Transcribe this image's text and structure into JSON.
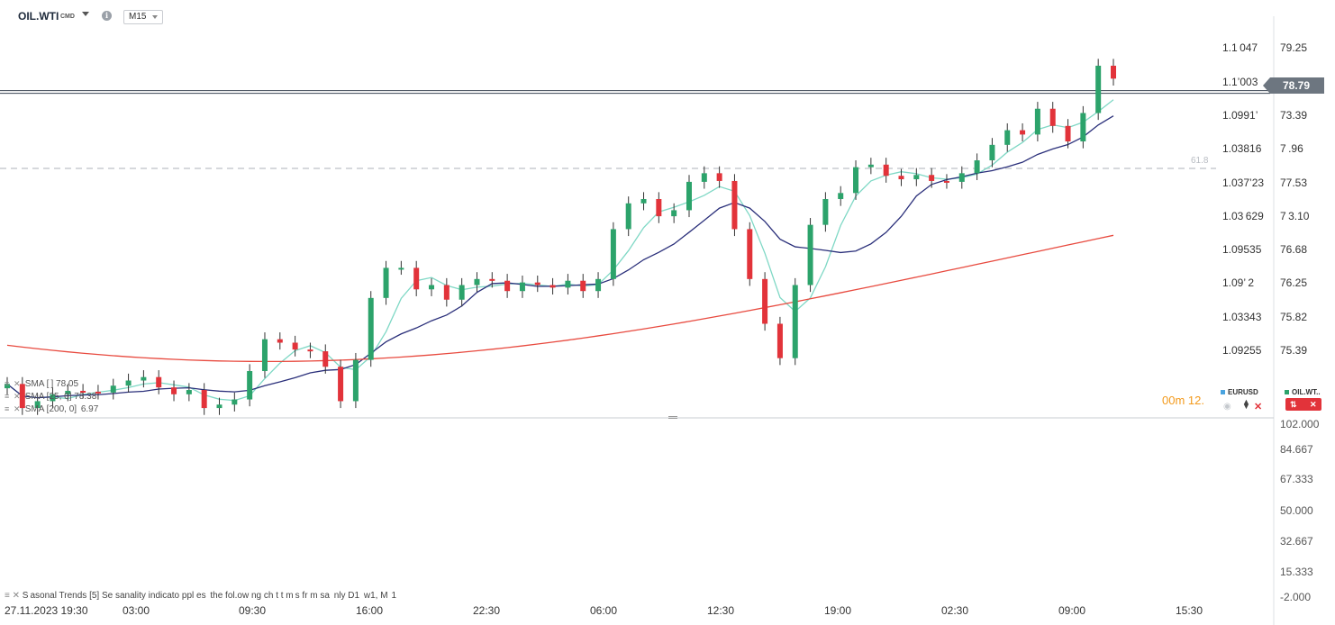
{
  "header": {
    "symbol": "OIL.WTI",
    "symbol_type": "CMD",
    "timeframe": "M15"
  },
  "price_axis": {
    "right_labels": [
      "79.25",
      "73.39",
      "7 .96",
      "77.53",
      "7 3.10",
      "76.68",
      "76.25",
      "75.82",
      "75.39"
    ],
    "current_price": "78.79",
    "left_labels": [
      "1.1 047",
      "1.1’003",
      "1.0991’",
      "1.03816",
      "1.037’23",
      "1.03 629",
      "1.09535",
      "1.09’ 2",
      "1.03343",
      "1.09255"
    ]
  },
  "fib_label": "61.8",
  "indicators": [
    {
      "label": "SMA [",
      "value": " ] 78.05"
    },
    {
      "label": "SMA [25, 0]",
      "value": "78.38"
    },
    {
      "label": "SMA [200, 0]",
      "value": " 6.97"
    }
  ],
  "timer": "00m 12.",
  "compare": {
    "eurusd": {
      "label": "EURUSD",
      "color": "#4aa3df"
    },
    "oilwti": {
      "label": "OIL.WT..",
      "color": "#2ca36b"
    }
  },
  "secondary_axis": [
    "102.000",
    "84.667",
    "67.333",
    "50.000",
    "32.667",
    "15.333",
    "-2.000"
  ],
  "seasonal_text": "S asonal  Trends  [5]  Se  sanality  indicato     ppl es   the fol.ow ng  ch   t  t m s  fr m sa   nly  D1   w1, M  1",
  "time_axis": [
    "27.11.2023  19:30",
    "03:00",
    "09:30",
    "16:00",
    "22:30",
    "06:00",
    "12:30",
    "19:00",
    "02:30",
    "09:00",
    "15:30"
  ],
  "colors": {
    "up": "#2ca36b",
    "down": "#e2333a",
    "sma_short": "#7fd8c5",
    "sma_mid": "#2a2f7a",
    "sma_long": "#e84a3f"
  },
  "chart_data": {
    "type": "candlestick",
    "instrument": "OIL.WTI",
    "timeframe": "M15",
    "ylim": [
      75.1,
      79.55
    ],
    "x_ticks": [
      "27.11.2023 19:30",
      "03:00",
      "09:30",
      "16:00",
      "22:30",
      "06:00",
      "12:30",
      "19:00",
      "02:30",
      "09:00",
      "15:30"
    ],
    "candles_close": [
      75.4,
      75.12,
      75.2,
      75.28,
      75.32,
      75.31,
      75.3,
      75.38,
      75.44,
      75.48,
      75.36,
      75.28,
      75.33,
      75.12,
      75.16,
      75.22,
      75.55,
      75.92,
      75.88,
      75.8,
      75.78,
      75.6,
      75.2,
      75.68,
      76.4,
      76.75,
      76.75,
      76.5,
      76.55,
      76.38,
      76.55,
      76.62,
      76.6,
      76.48,
      76.58,
      76.55,
      76.52,
      76.6,
      76.48,
      76.62,
      77.2,
      77.5,
      77.55,
      77.35,
      77.42,
      77.75,
      77.85,
      77.76,
      77.2,
      76.62,
      76.1,
      75.7,
      76.55,
      77.25,
      77.55,
      77.62,
      77.92,
      77.95,
      77.82,
      77.78,
      77.83,
      77.76,
      77.75,
      77.85,
      78.0,
      78.18,
      78.35,
      78.3,
      78.6,
      78.4,
      78.22,
      78.55,
      79.1,
      78.95
    ],
    "series": [
      {
        "name": "SMA [",
        "last": 78.05
      },
      {
        "name": "SMA [25, 0]",
        "last": 78.38
      },
      {
        "name": "SMA [200, 0]",
        "last": 76.97
      }
    ],
    "secondary_ylim": [
      -2,
      102
    ]
  }
}
